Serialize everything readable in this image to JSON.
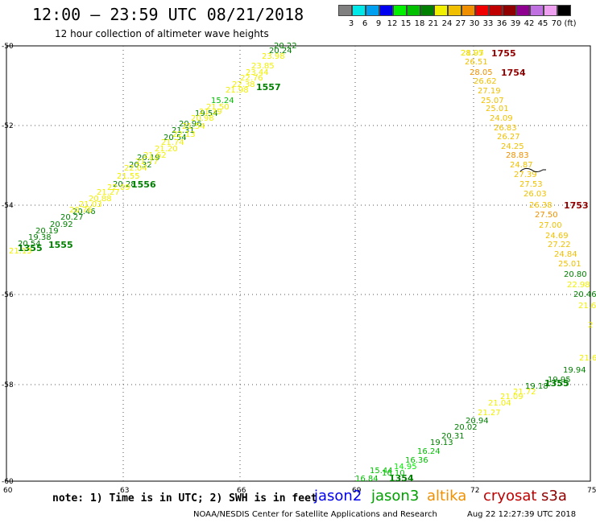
{
  "header": {
    "title": "12:00 — 23:59 UTC 08/21/2018",
    "subtitle": "12 hour collection of altimeter wave heights"
  },
  "scale": {
    "labels": [
      "3",
      "6",
      "9",
      "12",
      "15",
      "18",
      "21",
      "24",
      "27",
      "30",
      "33",
      "36",
      "39",
      "42",
      "45",
      "70",
      "(ft)"
    ],
    "colors": [
      "#808080",
      "#00e8e8",
      "#00a0f0",
      "#0000f0",
      "#00f000",
      "#00c000",
      "#008000",
      "#f0f000",
      "#f0c000",
      "#f09000",
      "#f00000",
      "#c00000",
      "#900000",
      "#900090",
      "#c070e0",
      "#f0a0f0",
      "#000000"
    ]
  },
  "axes": {
    "lat_labels": [
      "-50",
      "-52",
      "-54",
      "-56",
      "-58",
      "-60"
    ],
    "lon_labels": [
      "60",
      "63",
      "66",
      "69",
      "72",
      "75"
    ]
  },
  "map_data": {
    "tracks": [
      {
        "name": "1555",
        "color": "#008000"
      },
      {
        "name": "1355",
        "color": "#008000"
      },
      {
        "name": "1556",
        "color": "#008000"
      },
      {
        "name": "1557",
        "color": "#008000"
      },
      {
        "name": "1755",
        "color": "#900000"
      },
      {
        "name": "1754",
        "color": "#900000"
      },
      {
        "name": "1753",
        "color": "#900000"
      },
      {
        "name": "1355",
        "color": "#008000"
      },
      {
        "name": "1354",
        "color": "#008000"
      }
    ],
    "values": [
      {
        "t": "28.97",
        "c": "#f0c000"
      },
      {
        "t": "26.51",
        "c": "#f0c000"
      },
      {
        "t": "28.05",
        "c": "#f09000"
      },
      {
        "t": "26.62",
        "c": "#f0c000"
      },
      {
        "t": "27.19",
        "c": "#f0c000"
      },
      {
        "t": "25.07",
        "c": "#f0c000"
      },
      {
        "t": "25.01",
        "c": "#f0c000"
      },
      {
        "t": "24.09",
        "c": "#f0c000"
      },
      {
        "t": "26.83",
        "c": "#f0c000"
      },
      {
        "t": "26.27",
        "c": "#f0c000"
      },
      {
        "t": "24.25",
        "c": "#f0c000"
      },
      {
        "t": "28.83",
        "c": "#f09000"
      },
      {
        "t": "24.87",
        "c": "#f0c000"
      },
      {
        "t": "27.39",
        "c": "#f0c000"
      },
      {
        "t": "27.53",
        "c": "#f0c000"
      },
      {
        "t": "26.03",
        "c": "#f0c000"
      },
      {
        "t": "26.38",
        "c": "#f0c000"
      },
      {
        "t": "27.50",
        "c": "#f09000"
      },
      {
        "t": "27.00",
        "c": "#f0c000"
      },
      {
        "t": "24.69",
        "c": "#f0c000"
      },
      {
        "t": "27.22",
        "c": "#f0c000"
      },
      {
        "t": "24.84",
        "c": "#f0c000"
      },
      {
        "t": "25.01",
        "c": "#f0c000"
      },
      {
        "t": "20.80",
        "c": "#008000"
      },
      {
        "t": "22.98",
        "c": "#f0f000"
      },
      {
        "t": "20.46",
        "c": "#008000"
      },
      {
        "t": "21.6",
        "c": "#f0f000"
      },
      {
        "t": "2",
        "c": "#f0f000"
      },
      {
        "t": "21.6",
        "c": "#f0f000"
      },
      {
        "t": "19.94",
        "c": "#008000"
      },
      {
        "t": "19.95",
        "c": "#008000"
      },
      {
        "t": "19.18",
        "c": "#008000"
      },
      {
        "t": "21.72",
        "c": "#f0f000"
      },
      {
        "t": "21.09",
        "c": "#f0f000"
      },
      {
        "t": "21.04",
        "c": "#f0f000"
      },
      {
        "t": "21.27",
        "c": "#f0f000"
      },
      {
        "t": "20.94",
        "c": "#008000"
      },
      {
        "t": "20.02",
        "c": "#008000"
      },
      {
        "t": "20.31",
        "c": "#008000"
      },
      {
        "t": "19.13",
        "c": "#008000"
      },
      {
        "t": "16.24",
        "c": "#00c000"
      },
      {
        "t": "16.36",
        "c": "#00c000"
      },
      {
        "t": "14.95",
        "c": "#00f000"
      },
      {
        "t": "16.10",
        "c": "#00c000"
      },
      {
        "t": "15.44",
        "c": "#00c000"
      },
      {
        "t": "16.84",
        "c": "#00c000"
      },
      {
        "t": "15.24",
        "c": "#00c000"
      },
      {
        "t": "19.54",
        "c": "#008000"
      },
      {
        "t": "20.96",
        "c": "#008000"
      },
      {
        "t": "21.31",
        "c": "#008000"
      },
      {
        "t": "20.54",
        "c": "#008000"
      },
      {
        "t": "20.19",
        "c": "#008000"
      },
      {
        "t": "20.32",
        "c": "#008000"
      },
      {
        "t": "20.28",
        "c": "#008000"
      },
      {
        "t": "20.46",
        "c": "#008000"
      },
      {
        "t": "20.27",
        "c": "#008000"
      },
      {
        "t": "20.92",
        "c": "#008000"
      },
      {
        "t": "20.19",
        "c": "#008000"
      },
      {
        "t": "19.38",
        "c": "#008000"
      },
      {
        "t": "20.54",
        "c": "#008000"
      },
      {
        "t": "21.13",
        "c": "#f0f000"
      },
      {
        "t": "20.22",
        "c": "#008000"
      },
      {
        "t": "20.24",
        "c": "#008000"
      },
      {
        "t": "23.98",
        "c": "#f0f000"
      },
      {
        "t": "23.85",
        "c": "#f0f000"
      },
      {
        "t": "23.44",
        "c": "#f0f000"
      },
      {
        "t": "22.76",
        "c": "#f0f000"
      },
      {
        "t": "22.38",
        "c": "#f0f000"
      },
      {
        "t": "21.98",
        "c": "#f0f000"
      },
      {
        "t": "21.50",
        "c": "#f0f000"
      },
      {
        "t": "21.39",
        "c": "#f0f000"
      },
      {
        "t": "20.98",
        "c": "#f0f000"
      },
      {
        "t": "21.54",
        "c": "#f0f000"
      },
      {
        "t": "22.13",
        "c": "#f0f000"
      },
      {
        "t": "21.74",
        "c": "#f0f000"
      },
      {
        "t": "21.20",
        "c": "#f0f000"
      },
      {
        "t": "21.62",
        "c": "#f0f000"
      },
      {
        "t": "21.77",
        "c": "#f0f000"
      },
      {
        "t": "22.04",
        "c": "#f0f000"
      },
      {
        "t": "21.55",
        "c": "#f0f000"
      },
      {
        "t": "22.09",
        "c": "#f0f000"
      },
      {
        "t": "21.27",
        "c": "#f0f000"
      },
      {
        "t": "20.88",
        "c": "#f0f000"
      },
      {
        "t": "21.03",
        "c": "#f0f000"
      },
      {
        "t": "20.76",
        "c": "#f0f000"
      },
      {
        "t": "21.05",
        "c": "#f0f000"
      }
    ]
  },
  "note": "note: 1) Time is in UTC; 2) SWH is in feet",
  "legend": [
    {
      "label": "jason2",
      "color": "#0000f0"
    },
    {
      "label": "jason3",
      "color": "#00a000"
    },
    {
      "label": "altika",
      "color": "#f09000"
    },
    {
      "label": "cryosat",
      "color": "#c00000"
    },
    {
      "label": "s3a",
      "color": "#900000"
    }
  ],
  "footer": {
    "left": "NOAA/NESDIS Center for Satellite Applications and Research",
    "right": "Aug 22 12:27:39 UTC 2018"
  }
}
